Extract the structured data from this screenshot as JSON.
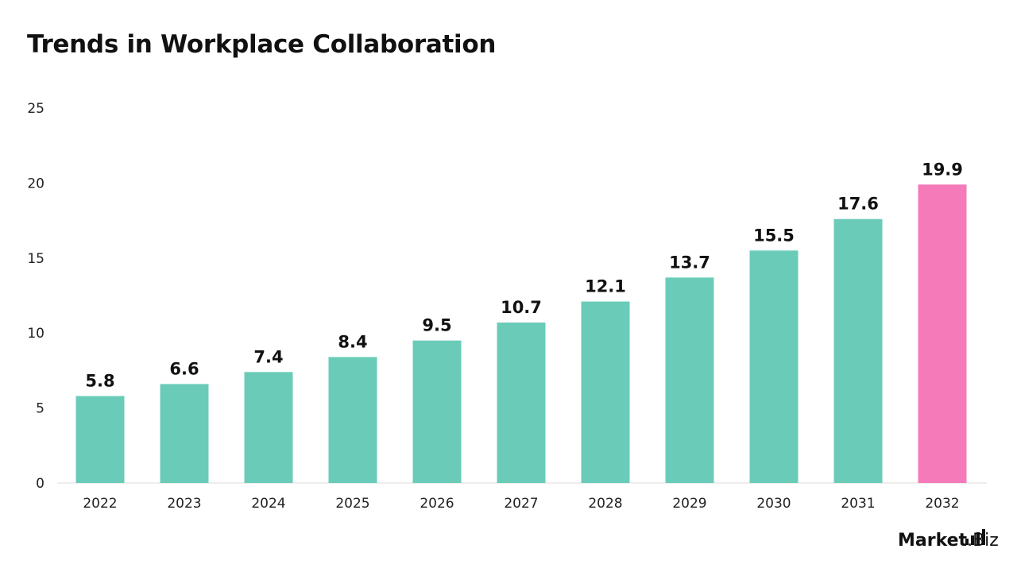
{
  "chart_data": {
    "type": "bar",
    "title": "Trends in Workplace Collaboration",
    "xlabel": "",
    "ylabel": "",
    "categories": [
      "2022",
      "2023",
      "2024",
      "2025",
      "2026",
      "2027",
      "2028",
      "2029",
      "2030",
      "2031",
      "2032"
    ],
    "values": [
      5.8,
      6.6,
      7.4,
      8.4,
      9.5,
      10.7,
      12.1,
      13.7,
      15.5,
      17.6,
      19.9
    ],
    "data_labels": [
      "5.8",
      "6.6",
      "7.4",
      "8.4",
      "9.5",
      "10.7",
      "12.1",
      "13.7",
      "15.5",
      "17.6",
      "19.9"
    ],
    "ylim": [
      0,
      25
    ],
    "yticks": [
      "0",
      "5",
      "10",
      "15",
      "20",
      "25"
    ],
    "grid": false,
    "colors": {
      "default": "#6accb8",
      "highlight": "#f47ab9",
      "highlight_index": 10
    }
  },
  "branding": {
    "logo_text": "Market.Biz",
    "logo_bold": "Market",
    "logo_light": ".Biz"
  }
}
